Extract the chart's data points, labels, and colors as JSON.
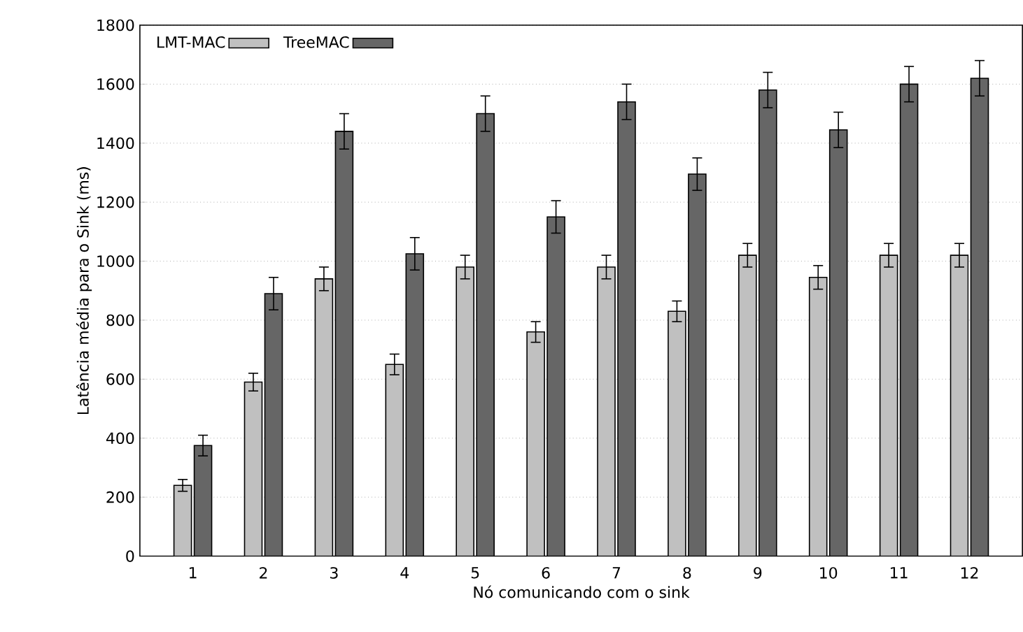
{
  "chart_data": {
    "type": "bar",
    "xlabel": "Nó comunicando com o sink",
    "ylabel": "Latência média para o Sink (ms)",
    "categories": [
      "1",
      "2",
      "3",
      "4",
      "5",
      "6",
      "7",
      "8",
      "9",
      "10",
      "11",
      "12"
    ],
    "series": [
      {
        "name": "LMT-MAC",
        "color": "#c0c0c0",
        "values": [
          240,
          590,
          940,
          650,
          980,
          760,
          980,
          830,
          1020,
          945,
          1020,
          1020
        ],
        "errors": [
          20,
          30,
          40,
          35,
          40,
          35,
          40,
          35,
          40,
          40,
          40,
          40
        ]
      },
      {
        "name": "TreeMAC",
        "color": "#666666",
        "values": [
          375,
          890,
          1440,
          1025,
          1500,
          1150,
          1540,
          1295,
          1580,
          1445,
          1600,
          1620
        ],
        "errors": [
          35,
          55,
          60,
          55,
          60,
          55,
          60,
          55,
          60,
          60,
          60,
          60
        ]
      }
    ],
    "ylim": [
      0,
      1800
    ],
    "yticks": [
      0,
      200,
      400,
      600,
      800,
      1000,
      1200,
      1400,
      1600,
      1800
    ],
    "grid": "y",
    "legend": "top left"
  }
}
